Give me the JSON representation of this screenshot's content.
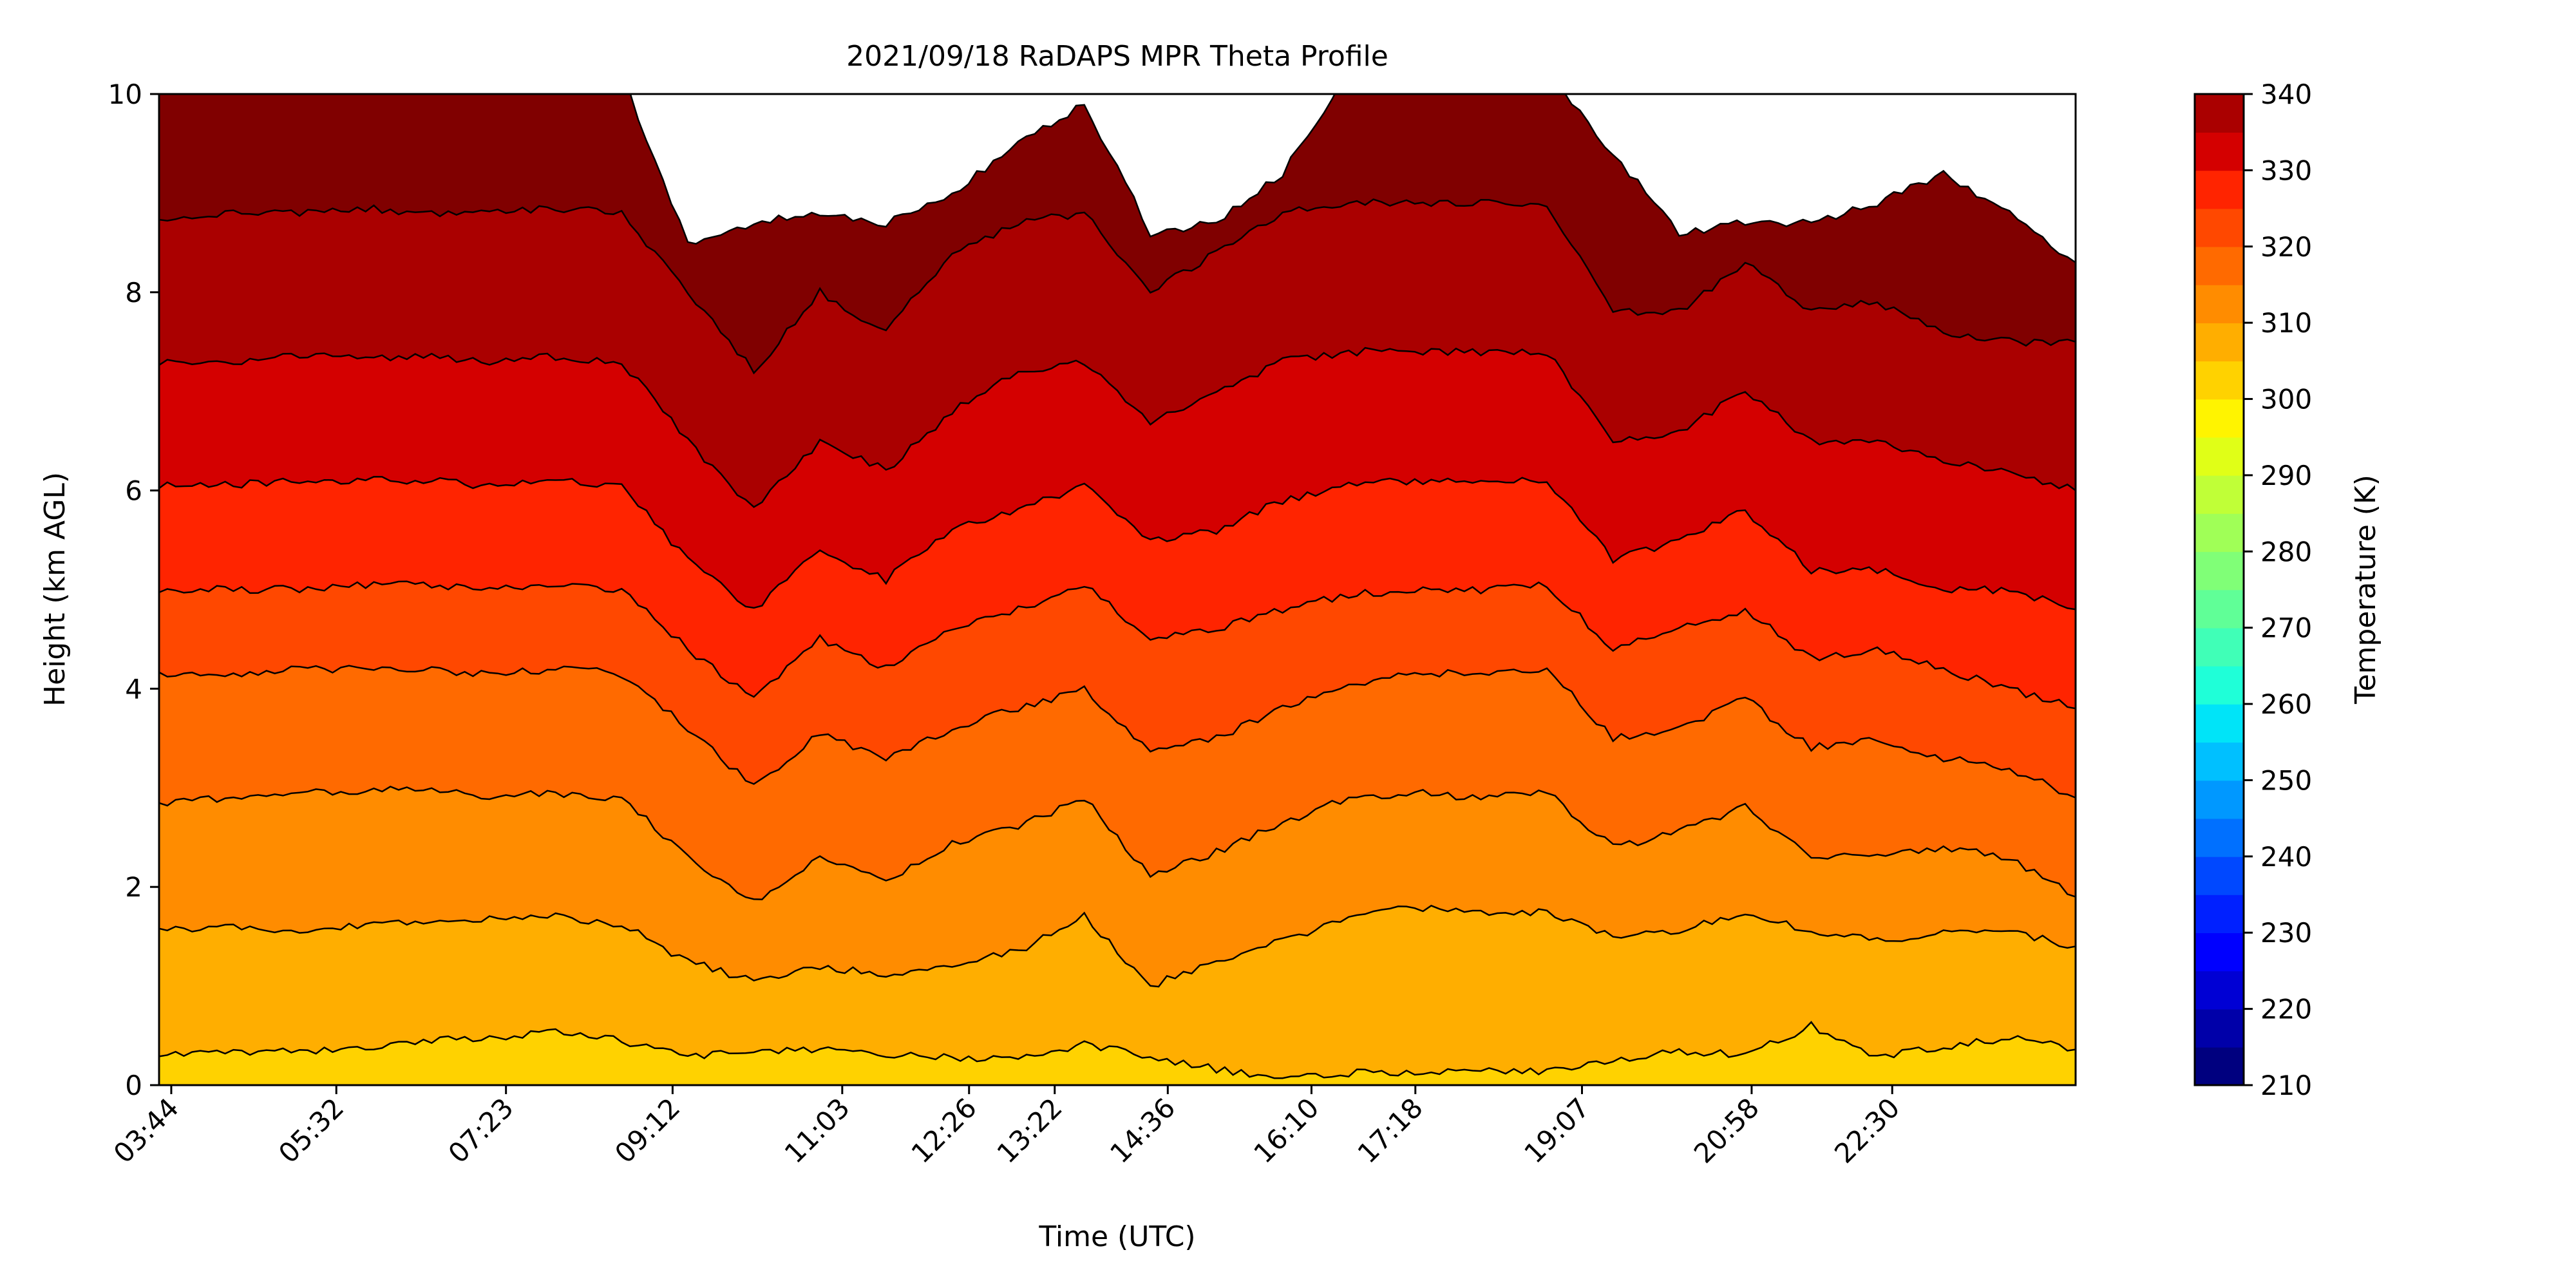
{
  "chart_data": {
    "type": "heatmap",
    "subtype": "filled-contour",
    "title": "2021/09/18 RaDAPS MPR Theta Profile",
    "xlabel": "Time (UTC)",
    "ylabel": "Height (km AGL)",
    "xlim_hours": [
      3.6,
      24.5
    ],
    "ylim": [
      0,
      10
    ],
    "x_ticks": [
      {
        "t": 3.733,
        "label": "03:44"
      },
      {
        "t": 5.533,
        "label": "05:32"
      },
      {
        "t": 7.383,
        "label": "07:23"
      },
      {
        "t": 9.2,
        "label": "09:12"
      },
      {
        "t": 11.05,
        "label": "11:03"
      },
      {
        "t": 12.433,
        "label": "12:26"
      },
      {
        "t": 13.367,
        "label": "13:22"
      },
      {
        "t": 14.6,
        "label": "14:36"
      },
      {
        "t": 16.167,
        "label": "16:10"
      },
      {
        "t": 17.3,
        "label": "17:18"
      },
      {
        "t": 19.117,
        "label": "19:07"
      },
      {
        "t": 20.967,
        "label": "20:58"
      },
      {
        "t": 22.5,
        "label": "22:30"
      }
    ],
    "y_ticks": [
      0,
      2,
      4,
      6,
      8,
      10
    ],
    "colorbar": {
      "label": "Temperature (K)",
      "range": [
        210,
        340
      ],
      "step": 5,
      "tick_values": [
        210,
        220,
        230,
        240,
        250,
        260,
        270,
        280,
        290,
        300,
        310,
        320,
        330,
        340
      ],
      "tick_labels": [
        "210",
        "220",
        "230",
        "240",
        "250",
        "260",
        "270",
        "280",
        "290",
        "300",
        "310",
        "320",
        "330",
        "340"
      ],
      "colors": [
        "#00007f",
        "#0000a9",
        "#0000d4",
        "#0000ff",
        "#0020ff",
        "#0048ff",
        "#0070ff",
        "#0098ff",
        "#00c0ff",
        "#00e4f8",
        "#1fffd8",
        "#40ffb7",
        "#60ff97",
        "#80ff77",
        "#a0ff57",
        "#c0ff37",
        "#e0ff17",
        "#fff400",
        "#ffd200",
        "#ffae00",
        "#ff8c00",
        "#ff6a00",
        "#ff4800",
        "#ff2400",
        "#d40000",
        "#aa0000",
        "#800000"
      ]
    },
    "contours": [
      {
        "level": 300,
        "color": "#ffd200",
        "heights": [
          0.3,
          0.34,
          0.34,
          0.38,
          0.45,
          0.48,
          0.55,
          0.45,
          0.3,
          0.32,
          0.36,
          0.3,
          0.28,
          0.26,
          0.42,
          0.28,
          0.16,
          0.08,
          0.12,
          0.14,
          0.16,
          0.14,
          0.24,
          0.35,
          0.3,
          0.6,
          0.28,
          0.38,
          0.48,
          0.36
        ]
      },
      {
        "level": 305,
        "color": "#ffae00",
        "heights": [
          1.55,
          1.6,
          1.55,
          1.62,
          1.65,
          1.68,
          1.7,
          1.62,
          1.25,
          1.05,
          1.2,
          1.1,
          1.2,
          1.35,
          1.7,
          1.0,
          1.25,
          1.45,
          1.7,
          1.8,
          1.75,
          1.75,
          1.5,
          1.55,
          1.75,
          1.55,
          1.45,
          1.55,
          1.55,
          1.4
        ]
      },
      {
        "level": 310,
        "color": "#ff8c00",
        "heights": [
          2.85,
          2.9,
          2.95,
          2.95,
          3.0,
          2.9,
          2.95,
          2.9,
          2.3,
          1.85,
          2.3,
          2.05,
          2.45,
          2.6,
          2.9,
          2.1,
          2.35,
          2.65,
          2.9,
          2.95,
          2.9,
          2.95,
          2.4,
          2.55,
          2.8,
          2.3,
          2.3,
          2.4,
          2.3,
          1.9
        ]
      },
      {
        "level": 315,
        "color": "#ff6a00",
        "heights": [
          4.15,
          4.15,
          4.2,
          4.2,
          4.2,
          4.15,
          4.2,
          4.15,
          3.6,
          3.0,
          3.55,
          3.3,
          3.6,
          3.8,
          4.0,
          3.35,
          3.5,
          3.8,
          4.05,
          4.15,
          4.15,
          4.2,
          3.5,
          3.6,
          3.9,
          3.4,
          3.5,
          3.3,
          3.2,
          2.9
        ]
      },
      {
        "level": 320,
        "color": "#ff4800",
        "heights": [
          5.0,
          5.0,
          5.0,
          5.05,
          5.05,
          5.0,
          5.05,
          5.0,
          4.4,
          3.9,
          4.5,
          4.2,
          4.6,
          4.8,
          5.05,
          4.5,
          4.6,
          4.8,
          4.95,
          5.0,
          5.0,
          5.05,
          4.4,
          4.6,
          4.8,
          4.3,
          4.4,
          4.2,
          4.0,
          3.8
        ]
      },
      {
        "level": 325,
        "color": "#ff2400",
        "heights": [
          6.05,
          6.05,
          6.1,
          6.1,
          6.1,
          6.05,
          6.1,
          6.05,
          5.3,
          4.8,
          5.4,
          5.1,
          5.6,
          5.8,
          6.05,
          5.5,
          5.6,
          5.9,
          6.05,
          6.1,
          6.1,
          6.1,
          5.3,
          5.5,
          5.8,
          5.2,
          5.2,
          5.0,
          5.0,
          4.8
        ]
      },
      {
        "level": 330,
        "color": "#d40000",
        "heights": [
          7.3,
          7.3,
          7.35,
          7.35,
          7.35,
          7.3,
          7.35,
          7.3,
          6.5,
          5.8,
          6.5,
          6.2,
          6.8,
          7.2,
          7.3,
          6.7,
          7.0,
          7.3,
          7.4,
          7.4,
          7.4,
          7.4,
          6.5,
          6.6,
          7.0,
          6.5,
          6.5,
          6.3,
          6.2,
          6.0
        ]
      },
      {
        "level": 335,
        "color": "#aa0000",
        "heights": [
          8.75,
          8.8,
          8.8,
          8.85,
          8.8,
          8.8,
          8.85,
          8.8,
          8.0,
          7.2,
          8.0,
          7.6,
          8.4,
          8.7,
          8.8,
          8.0,
          8.4,
          8.8,
          8.9,
          8.9,
          8.9,
          8.9,
          7.8,
          7.8,
          8.3,
          7.8,
          7.9,
          7.6,
          7.5,
          7.5
        ]
      },
      {
        "level": 340,
        "color": "#800000",
        "heights": [
          10.2,
          10.2,
          10.2,
          10.2,
          10.2,
          10.2,
          10.2,
          10.2,
          8.5,
          8.7,
          8.8,
          8.7,
          9.0,
          9.5,
          9.9,
          8.6,
          8.7,
          9.2,
          10.2,
          10.2,
          10.2,
          10.2,
          9.4,
          8.6,
          8.7,
          8.7,
          8.9,
          9.2,
          8.8,
          8.3
        ]
      }
    ],
    "top_fill_color": "#ffffff",
    "surface_color": "#ffd200",
    "contour_line_color": "#000000",
    "grid": false,
    "legend": "colorbar-right"
  }
}
